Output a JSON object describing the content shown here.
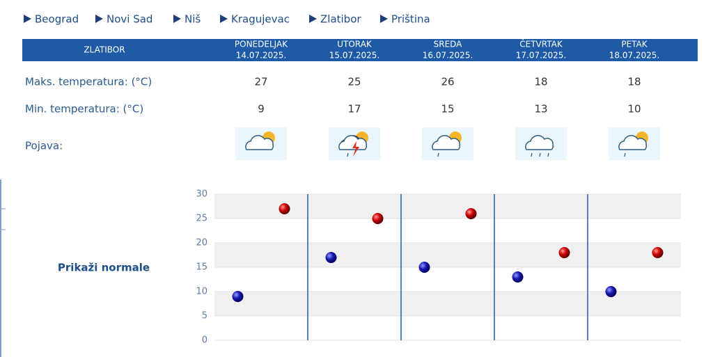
{
  "nav": [
    "Beograd",
    "Novi Sad",
    "Niš",
    "Kragujevac",
    "Zlatibor",
    "Priština"
  ],
  "table": {
    "city": "ZLATIBOR",
    "days": [
      {
        "name": "PONEDELJAK",
        "date": "14.07.2025."
      },
      {
        "name": "UTORAK",
        "date": "15.07.2025."
      },
      {
        "name": "SREDA",
        "date": "16.07.2025."
      },
      {
        "name": "ČETVRTAK",
        "date": "17.07.2025."
      },
      {
        "name": "PETAK",
        "date": "18.07.2025."
      }
    ],
    "rows": [
      {
        "label": "Maks. temperatura: (°C)",
        "values": [
          27,
          25,
          26,
          18,
          18
        ]
      },
      {
        "label": "Min. temperatura: (°C)",
        "values": [
          9,
          17,
          15,
          13,
          10
        ]
      }
    ],
    "weather_label": "Pojava:"
  },
  "normals_link": "Prikaži normale",
  "chart_data": {
    "type": "scatter",
    "ylim": [
      0,
      30
    ],
    "yticks": [
      0,
      5,
      10,
      15,
      20,
      25,
      30
    ],
    "grid": true,
    "series": [
      {
        "color": "#1a1ab0",
        "values": [
          9,
          17,
          15,
          13,
          10
        ]
      },
      {
        "color": "#cc0000",
        "values": [
          27,
          25,
          26,
          18,
          18
        ]
      }
    ]
  }
}
